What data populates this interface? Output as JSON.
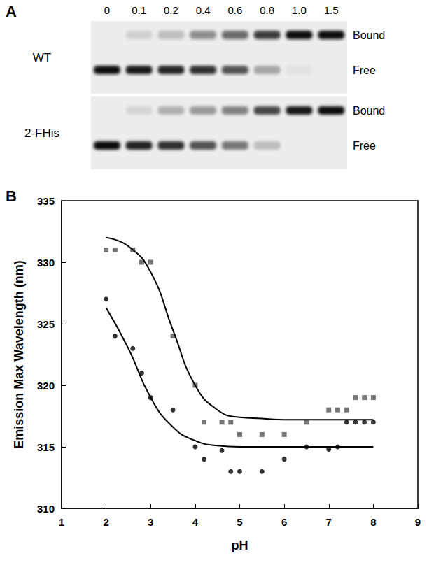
{
  "panel_a": {
    "panel_label": "A",
    "lanes": [
      "0",
      "0.1",
      "0.2",
      "0.4",
      "0.6",
      "0.8",
      "1.0",
      "1.5"
    ],
    "band_labels": {
      "bound": "Bound",
      "free": "Free"
    },
    "gels": [
      {
        "name": "WT",
        "bound": [
          0,
          0.12,
          0.2,
          0.4,
          0.55,
          0.75,
          0.95,
          0.95
        ],
        "free": [
          0.95,
          0.9,
          0.85,
          0.8,
          0.65,
          0.3,
          0.05,
          0
        ]
      },
      {
        "name": "2-FHis",
        "bound": [
          0,
          0.1,
          0.25,
          0.35,
          0.45,
          0.7,
          0.9,
          0.95
        ],
        "free": [
          0.95,
          0.85,
          0.8,
          0.65,
          0.5,
          0.2,
          0,
          0
        ]
      }
    ]
  },
  "chart_data": {
    "type": "scatter",
    "panel_label": "B",
    "x_label": "pH",
    "y_label": "Emission Max Wavelength (nm)",
    "xlim": [
      1,
      9
    ],
    "xticks": [
      1,
      2,
      3,
      4,
      5,
      6,
      7,
      8,
      9
    ],
    "ylim": [
      310,
      335
    ],
    "yticks": [
      310,
      315,
      320,
      325,
      330,
      335
    ],
    "grid": false,
    "series": [
      {
        "type": "scatter",
        "marker": "square",
        "color": "#555555",
        "x": [
          2.0,
          2.2,
          2.6,
          2.8,
          3.0,
          3.5,
          4.0,
          4.2,
          4.6,
          4.8,
          5.0,
          5.5,
          6.0,
          6.5,
          7.0,
          7.2,
          7.4,
          7.6,
          7.8,
          8.0
        ],
        "values": [
          331,
          331,
          331,
          330,
          330,
          324,
          320,
          317,
          317,
          317,
          316,
          316,
          316,
          317,
          318,
          318,
          318,
          319,
          319,
          319
        ]
      },
      {
        "type": "scatter",
        "marker": "circle",
        "color": "#000000",
        "x": [
          2.0,
          2.2,
          2.6,
          2.8,
          3.0,
          3.5,
          4.0,
          4.2,
          4.6,
          4.8,
          5.0,
          5.5,
          6.0,
          6.5,
          7.0,
          7.2,
          7.4,
          7.6,
          7.8,
          8.0
        ],
        "values": [
          327,
          324,
          323,
          321,
          319,
          318,
          315,
          314,
          314.7,
          313,
          313,
          313,
          314,
          315,
          314.8,
          315,
          317,
          317,
          317,
          317
        ]
      },
      {
        "type": "line",
        "line_style": "solid",
        "color": "#000000",
        "x": [
          2.0,
          2.5,
          3.0,
          3.5,
          4.0,
          4.5,
          5.0,
          5.5,
          6.0,
          7.0,
          8.0
        ],
        "values": [
          332.0,
          331.3,
          329.2,
          324.5,
          320.0,
          318.0,
          317.4,
          317.3,
          317.2,
          317.2,
          317.2
        ]
      },
      {
        "type": "line",
        "line_style": "solid",
        "color": "#000000",
        "x": [
          2.0,
          2.5,
          3.0,
          3.5,
          4.0,
          4.5,
          5.0,
          6.0,
          7.0,
          8.0
        ],
        "values": [
          326.3,
          323.0,
          319.0,
          316.6,
          315.5,
          315.1,
          315.0,
          315.0,
          315.0,
          315.0
        ]
      }
    ]
  }
}
